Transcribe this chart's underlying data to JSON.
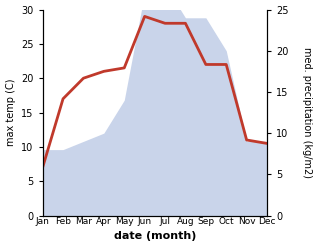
{
  "months": [
    "Jan",
    "Feb",
    "Mar",
    "Apr",
    "May",
    "Jun",
    "Jul",
    "Aug",
    "Sep",
    "Oct",
    "Nov",
    "Dec"
  ],
  "month_x": [
    1,
    2,
    3,
    4,
    5,
    6,
    7,
    8,
    9,
    10,
    11,
    12
  ],
  "temp": [
    7.0,
    17.0,
    20.0,
    21.0,
    21.5,
    29.0,
    28.0,
    28.0,
    22.0,
    22.0,
    11.0,
    10.5
  ],
  "precip": [
    8,
    8,
    9,
    10,
    14,
    27,
    28,
    24,
    24,
    20,
    9,
    9
  ],
  "temp_color": "#c0392b",
  "precip_fill_color": "#c9d4ea",
  "xlabel": "date (month)",
  "ylabel_left": "max temp (C)",
  "ylabel_right": "med. precipitation (kg/m2)",
  "ylim_left": [
    0,
    30
  ],
  "ylim_right": [
    0,
    25
  ],
  "yticks_left": [
    0,
    5,
    10,
    15,
    20,
    25,
    30
  ],
  "yticks_right": [
    0,
    5,
    10,
    15,
    20,
    25
  ],
  "background_color": "#ffffff",
  "temp_linewidth": 2.0
}
